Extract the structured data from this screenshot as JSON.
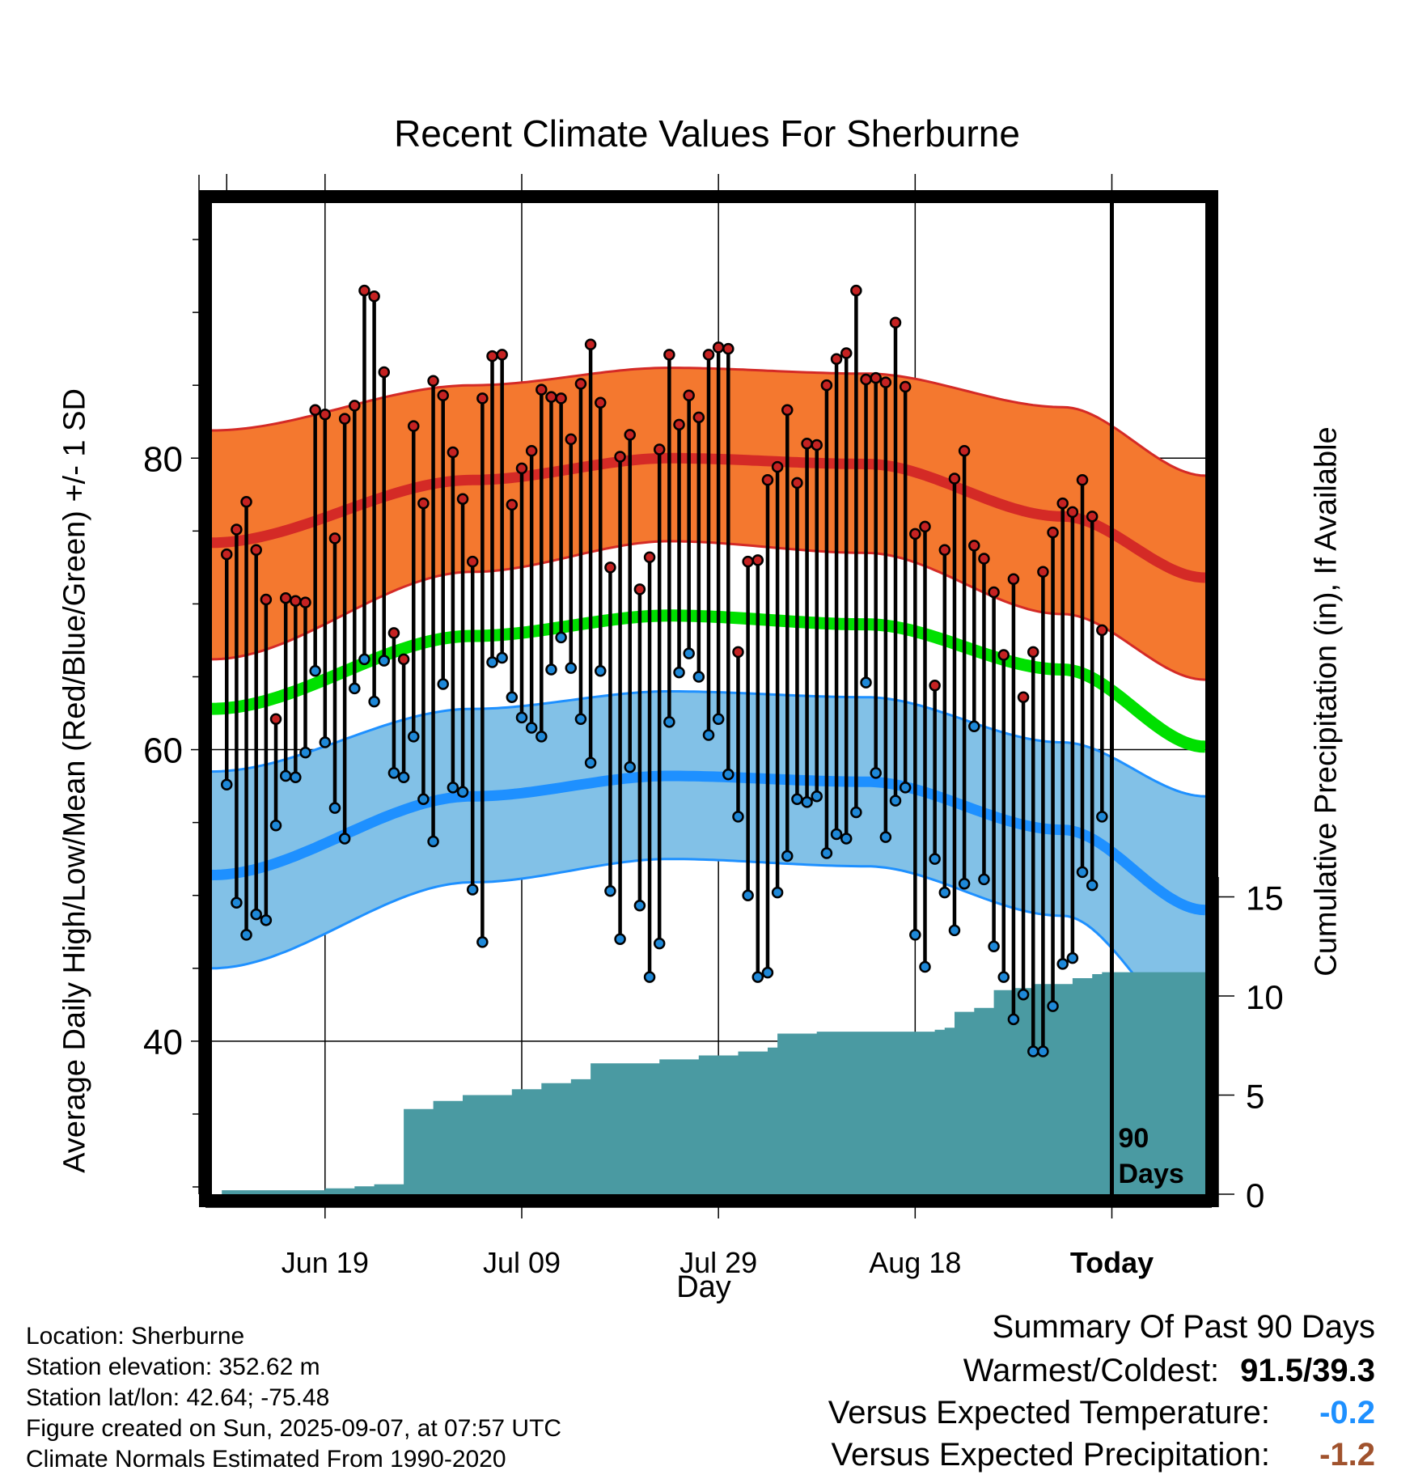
{
  "chart_data": {
    "type": "line",
    "title": "Recent Climate Values For Sherburne",
    "xlabel": "Day",
    "ylabel": "Average Daily High/Low/Mean (Red/Blue/Green) +/- 1 SD",
    "y2label": "Cumulative Precipitation (in), If Available",
    "x_ticks": [
      "Jun 19",
      "Jul 09",
      "Jul 29",
      "Aug 18",
      "Today"
    ],
    "y_ticks": [
      40,
      60,
      80
    ],
    "y2_ticks": [
      0,
      5,
      10,
      15
    ],
    "ylim": [
      29.5,
      97.5
    ],
    "y2lim": [
      0,
      50
    ],
    "xlim": [
      -91.5,
      9.5
    ],
    "grid": true,
    "today_marker_label": "90\nDays",
    "normals": {
      "high_mean": [
        [
          -91.5,
          74.2
        ],
        [
          -65,
          78.5
        ],
        [
          -45,
          80.0
        ],
        [
          -25,
          79.6
        ],
        [
          -5,
          76.0
        ],
        [
          9.5,
          71.8
        ]
      ],
      "high_upper": [
        [
          -91.5,
          81.9
        ],
        [
          -65,
          85.0
        ],
        [
          -45,
          86.2
        ],
        [
          -25,
          85.8
        ],
        [
          -5,
          83.5
        ],
        [
          9.5,
          78.8
        ]
      ],
      "high_lower": [
        [
          -91.5,
          66.2
        ],
        [
          -65,
          72.2
        ],
        [
          -45,
          74.3
        ],
        [
          -25,
          73.5
        ],
        [
          -5,
          69.3
        ],
        [
          9.5,
          64.8
        ]
      ],
      "low_mean": [
        [
          -91.5,
          51.4
        ],
        [
          -65,
          56.8
        ],
        [
          -45,
          58.2
        ],
        [
          -25,
          57.8
        ],
        [
          -5,
          54.5
        ],
        [
          9.5,
          49.0
        ]
      ],
      "low_upper": [
        [
          -91.5,
          58.5
        ],
        [
          -65,
          62.8
        ],
        [
          -45,
          64.0
        ],
        [
          -25,
          63.6
        ],
        [
          -5,
          60.5
        ],
        [
          9.5,
          56.8
        ]
      ],
      "low_lower": [
        [
          -91.5,
          45.0
        ],
        [
          -65,
          50.9
        ],
        [
          -45,
          52.5
        ],
        [
          -25,
          52.0
        ],
        [
          -5,
          48.6
        ],
        [
          9.5,
          40.5
        ]
      ],
      "mean": [
        [
          -91.5,
          62.8
        ],
        [
          -65,
          67.8
        ],
        [
          -45,
          69.2
        ],
        [
          -25,
          68.6
        ],
        [
          -5,
          65.5
        ],
        [
          9.5,
          60.2
        ]
      ]
    },
    "daily_high": [
      73.4,
      75.1,
      77.0,
      73.7,
      70.3,
      62.1,
      70.4,
      70.2,
      70.1,
      83.3,
      83.0,
      74.5,
      82.7,
      83.6,
      91.5,
      91.1,
      85.9,
      68.0,
      66.2,
      82.2,
      76.9,
      85.3,
      84.3,
      80.4,
      77.2,
      72.9,
      84.1,
      87.0,
      87.1,
      76.8,
      79.3,
      80.5,
      84.7,
      84.2,
      84.1,
      81.3,
      85.1,
      87.8,
      83.8,
      72.5,
      80.1,
      81.6,
      71.0,
      73.2,
      80.6,
      87.1,
      82.3,
      84.3,
      82.8,
      87.1,
      87.6,
      87.5,
      66.7,
      72.9,
      73.0,
      78.5,
      79.4,
      83.3,
      78.3,
      81.0,
      80.9,
      85.0,
      86.8,
      87.2,
      91.5,
      85.4,
      85.5,
      85.2,
      89.3,
      84.9,
      74.8,
      75.3,
      64.4,
      73.7,
      78.6,
      80.5,
      74.0,
      73.1,
      70.8,
      66.5,
      71.7,
      63.6,
      66.7,
      72.2,
      74.9,
      76.9,
      76.3,
      78.5,
      76.0,
      68.2
    ],
    "daily_low": [
      57.6,
      49.5,
      47.3,
      48.7,
      48.3,
      54.8,
      58.2,
      58.1,
      59.8,
      65.4,
      60.5,
      56.0,
      53.9,
      64.2,
      66.2,
      63.3,
      66.1,
      58.4,
      58.1,
      60.9,
      56.6,
      53.7,
      64.5,
      57.4,
      57.1,
      50.4,
      46.8,
      66.0,
      66.3,
      63.6,
      62.2,
      61.5,
      60.9,
      65.5,
      67.7,
      65.6,
      62.1,
      59.1,
      65.4,
      50.3,
      47.0,
      58.8,
      49.3,
      44.4,
      46.7,
      61.9,
      65.3,
      66.6,
      65.0,
      61.0,
      62.1,
      58.3,
      55.4,
      50.0,
      44.4,
      44.7,
      50.2,
      52.7,
      56.6,
      56.4,
      56.8,
      52.9,
      54.2,
      53.9,
      55.7,
      64.6,
      58.4,
      54.0,
      56.5,
      57.4,
      47.3,
      45.1,
      52.5,
      50.2,
      47.6,
      50.8,
      61.6,
      51.1,
      46.5,
      44.4,
      41.5,
      43.2,
      39.3,
      39.3,
      42.4,
      45.3,
      45.7,
      51.6,
      50.7,
      55.4
    ],
    "precip_cumulative": [
      [
        -90.5,
        0.2
      ],
      [
        -80,
        0.3
      ],
      [
        -77,
        0.4
      ],
      [
        -75,
        0.5
      ],
      [
        -72,
        4.3
      ],
      [
        -69,
        4.7
      ],
      [
        -66,
        5.0
      ],
      [
        -61,
        5.3
      ],
      [
        -58,
        5.6
      ],
      [
        -55,
        5.8
      ],
      [
        -53,
        6.6
      ],
      [
        -46,
        6.8
      ],
      [
        -42,
        7.0
      ],
      [
        -38,
        7.2
      ],
      [
        -35,
        7.4
      ],
      [
        -34,
        8.1
      ],
      [
        -30,
        8.2
      ],
      [
        -18,
        8.3
      ],
      [
        -17,
        8.4
      ],
      [
        -16,
        9.2
      ],
      [
        -14,
        9.4
      ],
      [
        -12,
        10.3
      ],
      [
        -10,
        10.4
      ],
      [
        -8,
        10.6
      ],
      [
        -4,
        10.9
      ],
      [
        -2,
        11.1
      ],
      [
        -1,
        11.2
      ],
      [
        9.5,
        11.2
      ]
    ]
  },
  "footer": {
    "location": "Location: Sherburne",
    "elevation": "Station elevation: 352.62 m",
    "latlon": "Station lat/lon: 42.64; -75.48",
    "created": "Figure created on Sun, 2025-09-07, at 07:57 UTC",
    "normals": "Climate Normals Estimated From 1990-2020"
  },
  "summary": {
    "title": "Summary Of Past 90 Days",
    "warmest_label": "Warmest/Coldest:",
    "warmest_value": "91.5/39.3",
    "temp_label": "Versus Expected Temperature:",
    "temp_value": "-0.2",
    "temp_color": "#1e90ff",
    "precip_label": "Versus Expected Precipitation:",
    "precip_value": "-1.2",
    "precip_color": "#a0522d"
  },
  "colors": {
    "high_band": "#f4782f",
    "high_line": "#d42a26",
    "low_band": "#82c1e7",
    "low_line": "#1e90ff",
    "mean_line": "#00e000",
    "precip": "#4a9aa2",
    "high_dot": "#c52222",
    "low_dot": "#1e88d8"
  }
}
